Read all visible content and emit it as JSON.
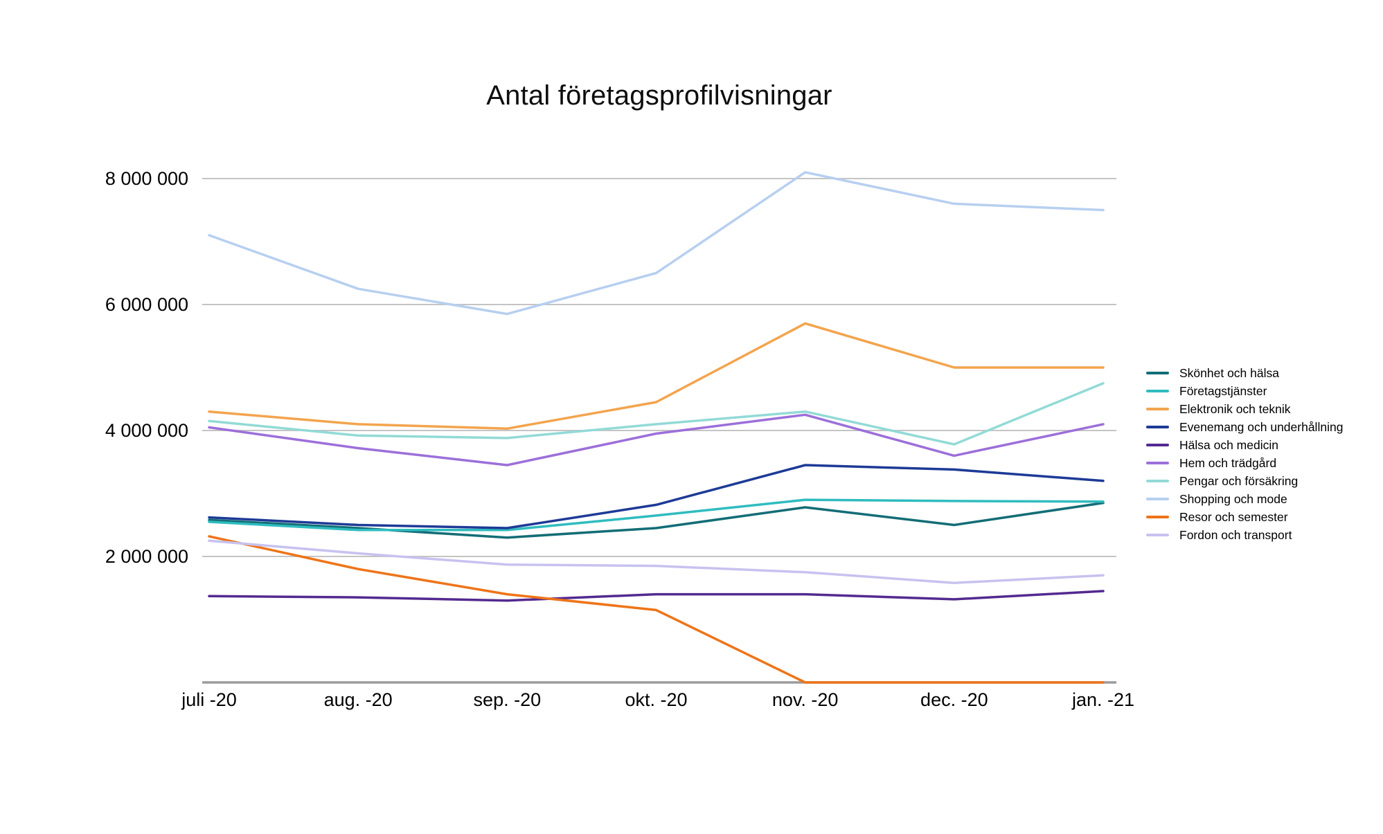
{
  "title": "Antal företagsprofilvisningar",
  "colors": {
    "gridline": "#c4c4c4",
    "axis_baseline": "#9b9b9b",
    "text": "#000000"
  },
  "chart_data": {
    "type": "line",
    "title": "Antal företagsprofilvisningar",
    "xlabel": "",
    "ylabel": "",
    "grid": "horizontal",
    "legend_position": "right",
    "ylim": [
      0,
      8700000
    ],
    "categories": [
      "juli -20",
      "aug. -20",
      "sep. -20",
      "okt. -20",
      "nov. -20",
      "dec. -20",
      "jan. -21"
    ],
    "y_ticks": [
      {
        "value": 2000000,
        "label": "2 000 000"
      },
      {
        "value": 4000000,
        "label": "4 000 000"
      },
      {
        "value": 6000000,
        "label": "6 000 000"
      },
      {
        "value": 8000000,
        "label": "8 000 000"
      }
    ],
    "series": [
      {
        "name": "Skönhet och hälsa",
        "color": "#136d76",
        "values": [
          2580000,
          2450000,
          2300000,
          2450000,
          2780000,
          2500000,
          2850000
        ]
      },
      {
        "name": "Företagstjänster",
        "color": "#2fbcbf",
        "values": [
          2550000,
          2420000,
          2420000,
          2650000,
          2900000,
          2880000,
          2870000
        ]
      },
      {
        "name": "Elektronik och teknik",
        "color": "#f3a44d",
        "values": [
          4300000,
          4100000,
          4030000,
          4450000,
          5700000,
          5000000,
          5000000
        ]
      },
      {
        "name": "Evenemang och underhållning",
        "color": "#1d3a96",
        "values": [
          2620000,
          2500000,
          2450000,
          2820000,
          3450000,
          3380000,
          3200000
        ]
      },
      {
        "name": "Hälsa och medicin",
        "color": "#532a8f",
        "values": [
          1370000,
          1350000,
          1300000,
          1400000,
          1400000,
          1320000,
          1450000
        ]
      },
      {
        "name": "Hem och trädgård",
        "color": "#9c6fd9",
        "values": [
          4050000,
          3720000,
          3450000,
          3950000,
          4250000,
          3600000,
          4100000
        ]
      },
      {
        "name": "Pengar och försäkring",
        "color": "#92dad6",
        "values": [
          4150000,
          3920000,
          3880000,
          4100000,
          4300000,
          3780000,
          4750000
        ]
      },
      {
        "name": "Shopping och mode",
        "color": "#b7cff0",
        "values": [
          7100000,
          6250000,
          5850000,
          6500000,
          8100000,
          7600000,
          7500000
        ]
      },
      {
        "name": "Resor och semester",
        "color": "#ee7418",
        "values": [
          2320000,
          1800000,
          1400000,
          1150000,
          0,
          0,
          0
        ]
      },
      {
        "name": "Fordon och transport",
        "color": "#c7c2ef",
        "values": [
          2250000,
          2050000,
          1870000,
          1850000,
          1750000,
          1580000,
          1700000
        ]
      }
    ]
  }
}
